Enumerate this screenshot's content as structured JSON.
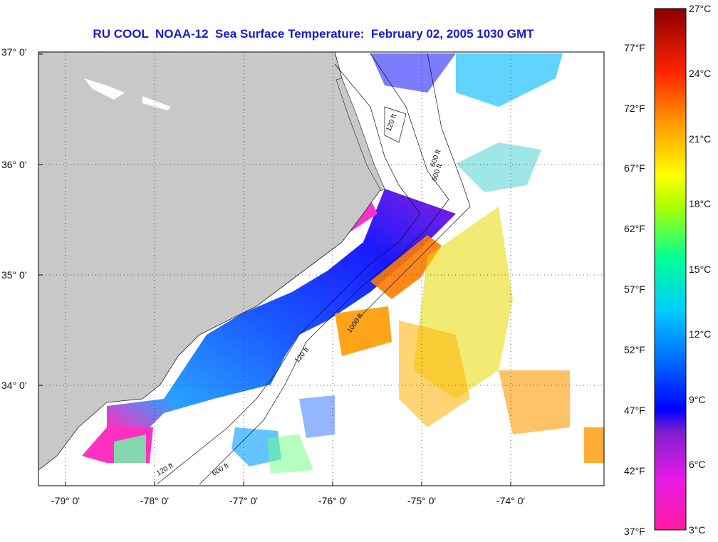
{
  "title": "RU COOL  NOAA-12  Sea Surface Temperature:  February 02, 2005 1030 GMT",
  "map": {
    "lat_labels": [
      "37° 0'",
      "36° 0'",
      "35° 0'",
      "34° 0'"
    ],
    "lon_labels": [
      "-79° 0'",
      "-78° 0'",
      "-77° 0'",
      "-76° 0'",
      "-75° 0'",
      "-74° 0'"
    ],
    "contour_labels": [
      "120 ft",
      "600 ft",
      "1000 ft",
      "120 ft",
      "600 ft",
      "120 ft",
      "600 ft"
    ],
    "land_color": "#c8c8c8",
    "grid": "dotted"
  },
  "colorbar": {
    "celsius_labels": [
      "27°C",
      "24°C",
      "21°C",
      "18°C",
      "15°C",
      "12°C",
      "9°C",
      "6°C",
      "3°C"
    ],
    "fahrenheit_labels": [
      "77°F",
      "72°F",
      "67°F",
      "62°F",
      "57°F",
      "52°F",
      "47°F",
      "42°F",
      "37°F"
    ],
    "colors": [
      "#8b0000",
      "#ff1a00",
      "#ff8c00",
      "#ffff00",
      "#00ff66",
      "#00e5ff",
      "#0044ff",
      "#0000ff",
      "#8a2be2",
      "#ff1ad0",
      "#ff1aa0"
    ]
  }
}
